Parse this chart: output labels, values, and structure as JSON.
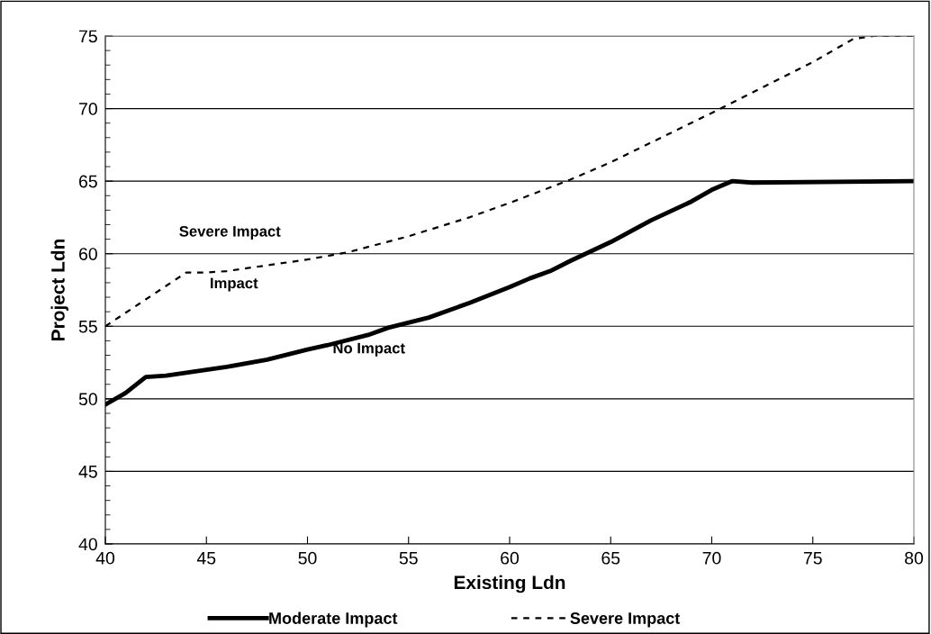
{
  "chart_data": {
    "type": "line",
    "xlabel": "Existing Ldn",
    "ylabel": "Project Ldn",
    "xlim": [
      40,
      80
    ],
    "xticks": [
      40,
      45,
      50,
      55,
      60,
      65,
      70,
      75,
      80
    ],
    "ylim": [
      40,
      75
    ],
    "yticks": [
      40,
      45,
      50,
      55,
      60,
      65,
      70,
      75
    ],
    "grid": "y",
    "legend": "bottom",
    "marker": "none",
    "annotations": [
      "Severe Impact",
      "Impact",
      "No Impact"
    ],
    "series": [
      {
        "name": "Moderate Impact",
        "color": "#000000",
        "line_style": "solid",
        "x": [
          40,
          41,
          42,
          43,
          45,
          46,
          48,
          50,
          51,
          53,
          54,
          56,
          58,
          60,
          61,
          62,
          63,
          65,
          67,
          69,
          70,
          71,
          72,
          80
        ],
        "values": [
          49.6,
          50.4,
          51.5,
          51.6,
          52.0,
          52.2,
          52.7,
          53.4,
          53.7,
          54.4,
          54.9,
          55.6,
          56.6,
          57.7,
          58.3,
          58.8,
          59.5,
          60.8,
          62.3,
          63.6,
          64.4,
          65.0,
          64.9,
          65.0
        ]
      },
      {
        "name": "Severe Impact",
        "color": "#000000",
        "line_style": "dashed",
        "x": [
          40,
          44,
          45,
          46,
          50,
          52,
          55,
          58,
          60,
          63,
          65,
          70,
          73,
          75,
          77,
          78,
          80
        ],
        "values": [
          55.0,
          58.7,
          58.7,
          58.8,
          59.6,
          60.1,
          61.2,
          62.5,
          63.5,
          65.1,
          66.3,
          69.7,
          71.8,
          73.2,
          74.8,
          75.0,
          75.0
        ]
      }
    ]
  }
}
